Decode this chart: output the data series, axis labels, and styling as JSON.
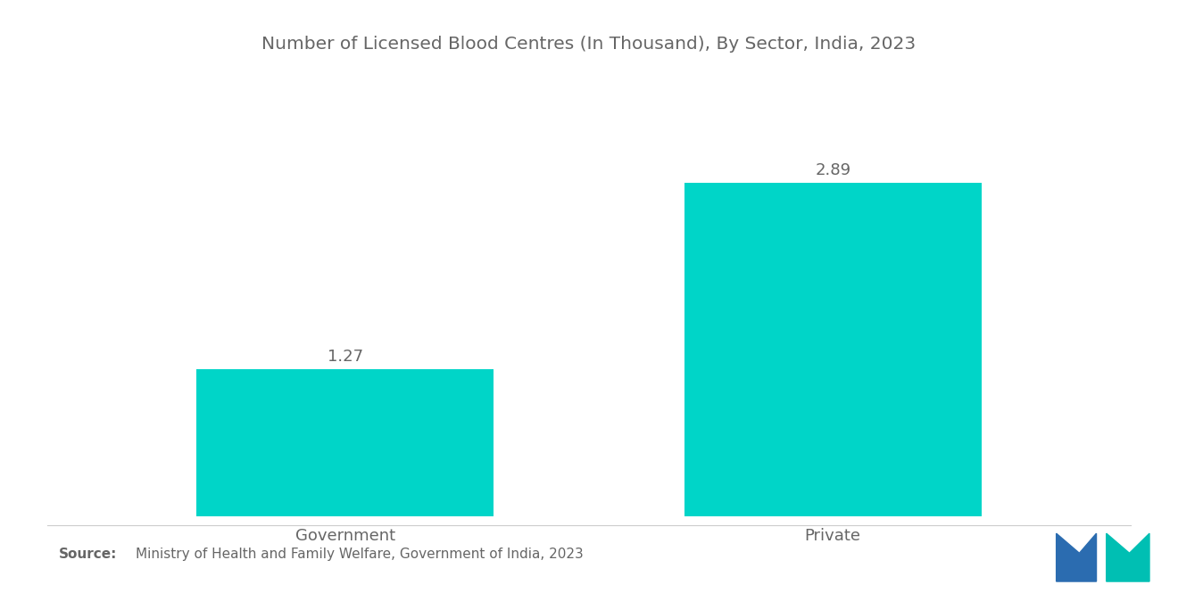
{
  "title": "Number of Licensed Blood Centres (In Thousand), By Sector, India, 2023",
  "categories": [
    "Government",
    "Private"
  ],
  "values": [
    1.27,
    2.89
  ],
  "bar_color": "#00D5C8",
  "bar_width": 0.28,
  "bar_positions": [
    0.27,
    0.73
  ],
  "value_labels": [
    "1.27",
    "2.89"
  ],
  "source_bold": "Source:",
  "source_text": "  Ministry of Health and Family Welfare, Government of India, 2023",
  "title_fontsize": 14.5,
  "label_fontsize": 13,
  "value_fontsize": 13,
  "source_fontsize": 11,
  "background_color": "#ffffff",
  "text_color": "#666666",
  "ylim": [
    0,
    3.6
  ],
  "xlim": [
    0,
    1
  ]
}
